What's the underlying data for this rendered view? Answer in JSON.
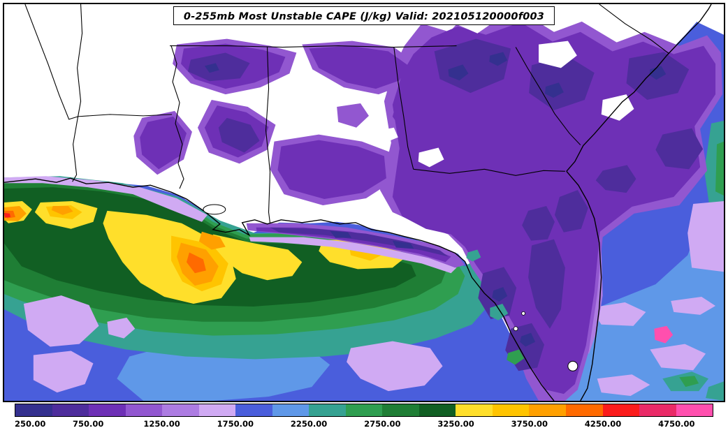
{
  "title": "0-255mb Most Unstable CAPE (J/kg) Valid: 202105120000f003",
  "map": {
    "land_color": "#ffffff",
    "boundary_color": "#000000",
    "frame_color": "#000000"
  },
  "colorbar": {
    "range": [
      250,
      5000
    ],
    "ticks": [
      "250.00",
      "750.00",
      "1250.00",
      "1750.00",
      "2250.00",
      "2750.00",
      "3250.00",
      "3750.00",
      "4250.00",
      "4750.00"
    ],
    "levels": [
      {
        "value": 250,
        "color": "#34308f"
      },
      {
        "value": 500,
        "color": "#4e2d9c"
      },
      {
        "value": 750,
        "color": "#6e30b6"
      },
      {
        "value": 1000,
        "color": "#9257d0"
      },
      {
        "value": 1250,
        "color": "#ad7ce2"
      },
      {
        "value": 1500,
        "color": "#d0aaf3"
      },
      {
        "value": 1750,
        "color": "#4a5edc"
      },
      {
        "value": 2000,
        "color": "#5f98e8"
      },
      {
        "value": 2250,
        "color": "#36a292"
      },
      {
        "value": 2500,
        "color": "#2f9e50"
      },
      {
        "value": 2750,
        "color": "#1f7e35"
      },
      {
        "value": 3000,
        "color": "#115f23"
      },
      {
        "value": 3250,
        "color": "#ffdf2b"
      },
      {
        "value": 3500,
        "color": "#ffc400"
      },
      {
        "value": 3750,
        "color": "#ffa000"
      },
      {
        "value": 4000,
        "color": "#ff6a00"
      },
      {
        "value": 4250,
        "color": "#fb1c1c"
      },
      {
        "value": 4500,
        "color": "#ea2a67"
      },
      {
        "value": 4750,
        "color": "#ff4fae"
      }
    ]
  }
}
